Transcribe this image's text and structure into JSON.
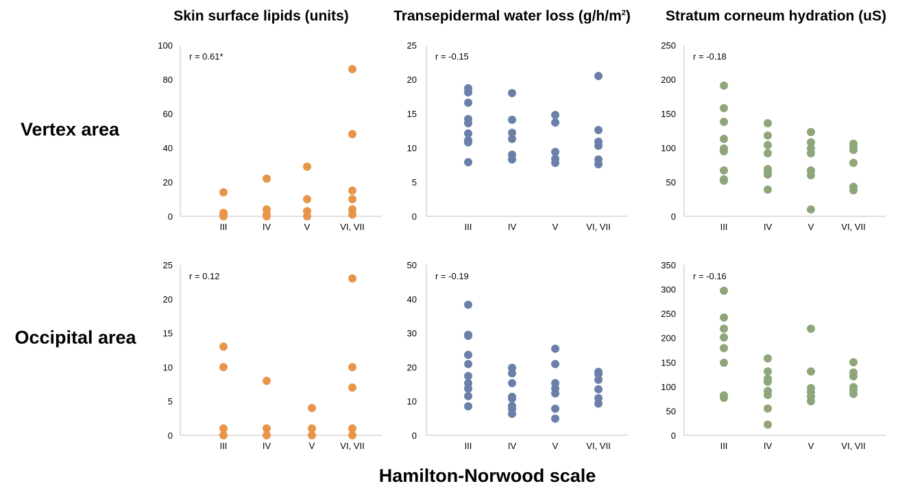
{
  "column_titles": [
    "Skin surface lipids (units)",
    "Transepidermal water loss (g/h/m",
    "Stratum corneum hydration (uS)"
  ],
  "column_title_superscript": "2",
  "column_title_suffix": ")",
  "row_labels": [
    "Vertex area",
    "Occipital area"
  ],
  "x_axis_title": "Hamilton-Norwood scale",
  "colors": {
    "lipids": "#E8954B",
    "tewl": "#6A80A8",
    "hydration": "#8FA67A",
    "axis": "#BFBFBF"
  },
  "chart_data": [
    {
      "type": "scatter",
      "row": "Vertex area",
      "measure": "Skin surface lipids (units)",
      "annotation": "r = 0.61*",
      "categories": [
        "III",
        "IV",
        "V",
        "VI, VII"
      ],
      "ylim": [
        0,
        100
      ],
      "yticks": [
        0,
        20,
        40,
        60,
        80,
        100
      ],
      "color": "#E8954B",
      "points": [
        {
          "x": "III",
          "y": 14
        },
        {
          "x": "III",
          "y": 2
        },
        {
          "x": "III",
          "y": 1
        },
        {
          "x": "III",
          "y": 0
        },
        {
          "x": "IV",
          "y": 22
        },
        {
          "x": "IV",
          "y": 4
        },
        {
          "x": "IV",
          "y": 1
        },
        {
          "x": "IV",
          "y": 0
        },
        {
          "x": "V",
          "y": 29
        },
        {
          "x": "V",
          "y": 10
        },
        {
          "x": "V",
          "y": 3
        },
        {
          "x": "V",
          "y": 0
        },
        {
          "x": "VI, VII",
          "y": 86
        },
        {
          "x": "VI, VII",
          "y": 48
        },
        {
          "x": "VI, VII",
          "y": 15
        },
        {
          "x": "VI, VII",
          "y": 10
        },
        {
          "x": "VI, VII",
          "y": 4
        },
        {
          "x": "VI, VII",
          "y": 1
        }
      ]
    },
    {
      "type": "scatter",
      "row": "Vertex area",
      "measure": "Transepidermal water loss (g/h/m2)",
      "annotation": "r = -0.15",
      "categories": [
        "III",
        "IV",
        "V",
        "VI, VII"
      ],
      "ylim": [
        0,
        25
      ],
      "yticks": [
        0,
        5,
        10,
        15,
        20,
        25
      ],
      "color": "#6A80A8",
      "points": [
        {
          "x": "III",
          "y": 18.7
        },
        {
          "x": "III",
          "y": 18.1
        },
        {
          "x": "III",
          "y": 16.6
        },
        {
          "x": "III",
          "y": 14.2
        },
        {
          "x": "III",
          "y": 13.6
        },
        {
          "x": "III",
          "y": 12.1
        },
        {
          "x": "III",
          "y": 11.1
        },
        {
          "x": "III",
          "y": 10.8
        },
        {
          "x": "III",
          "y": 7.9
        },
        {
          "x": "IV",
          "y": 18.0
        },
        {
          "x": "IV",
          "y": 14.1
        },
        {
          "x": "IV",
          "y": 12.2
        },
        {
          "x": "IV",
          "y": 11.3
        },
        {
          "x": "IV",
          "y": 9.0
        },
        {
          "x": "IV",
          "y": 8.3
        },
        {
          "x": "V",
          "y": 14.8
        },
        {
          "x": "V",
          "y": 13.7
        },
        {
          "x": "V",
          "y": 9.4
        },
        {
          "x": "V",
          "y": 8.4
        },
        {
          "x": "V",
          "y": 7.8
        },
        {
          "x": "VI, VII",
          "y": 20.5
        },
        {
          "x": "VI, VII",
          "y": 12.6
        },
        {
          "x": "VI, VII",
          "y": 10.9
        },
        {
          "x": "VI, VII",
          "y": 10.3
        },
        {
          "x": "VI, VII",
          "y": 8.3
        },
        {
          "x": "VI, VII",
          "y": 7.6
        }
      ]
    },
    {
      "type": "scatter",
      "row": "Vertex area",
      "measure": "Stratum corneum hydration (uS)",
      "annotation": "r = -0.18",
      "categories": [
        "III",
        "IV",
        "V",
        "VI, VII"
      ],
      "ylim": [
        0,
        250
      ],
      "yticks": [
        0,
        50,
        100,
        150,
        200,
        250
      ],
      "color": "#8FA67A",
      "points": [
        {
          "x": "III",
          "y": 191
        },
        {
          "x": "III",
          "y": 158
        },
        {
          "x": "III",
          "y": 138
        },
        {
          "x": "III",
          "y": 113
        },
        {
          "x": "III",
          "y": 99
        },
        {
          "x": "III",
          "y": 95
        },
        {
          "x": "III",
          "y": 67
        },
        {
          "x": "III",
          "y": 54
        },
        {
          "x": "III",
          "y": 52
        },
        {
          "x": "IV",
          "y": 136
        },
        {
          "x": "IV",
          "y": 118
        },
        {
          "x": "IV",
          "y": 104
        },
        {
          "x": "IV",
          "y": 92
        },
        {
          "x": "IV",
          "y": 69
        },
        {
          "x": "IV",
          "y": 66
        },
        {
          "x": "IV",
          "y": 61
        },
        {
          "x": "IV",
          "y": 39
        },
        {
          "x": "V",
          "y": 123
        },
        {
          "x": "V",
          "y": 108
        },
        {
          "x": "V",
          "y": 99
        },
        {
          "x": "V",
          "y": 92
        },
        {
          "x": "V",
          "y": 67
        },
        {
          "x": "V",
          "y": 60
        },
        {
          "x": "V",
          "y": 10
        },
        {
          "x": "VI, VII",
          "y": 106
        },
        {
          "x": "VI, VII",
          "y": 102
        },
        {
          "x": "VI, VII",
          "y": 97
        },
        {
          "x": "VI, VII",
          "y": 78
        },
        {
          "x": "VI, VII",
          "y": 43
        },
        {
          "x": "VI, VII",
          "y": 38
        }
      ]
    },
    {
      "type": "scatter",
      "row": "Occipital area",
      "measure": "Skin surface lipids (units)",
      "annotation": "r = 0.12",
      "categories": [
        "III",
        "IV",
        "V",
        "VI, VII"
      ],
      "ylim": [
        0,
        25
      ],
      "yticks": [
        0,
        5,
        10,
        15,
        20,
        25
      ],
      "color": "#E8954B",
      "points": [
        {
          "x": "III",
          "y": 13
        },
        {
          "x": "III",
          "y": 10
        },
        {
          "x": "III",
          "y": 1
        },
        {
          "x": "III",
          "y": 0
        },
        {
          "x": "IV",
          "y": 8
        },
        {
          "x": "IV",
          "y": 1
        },
        {
          "x": "IV",
          "y": 0
        },
        {
          "x": "V",
          "y": 4
        },
        {
          "x": "V",
          "y": 1
        },
        {
          "x": "V",
          "y": 0
        },
        {
          "x": "VI, VII",
          "y": 23
        },
        {
          "x": "VI, VII",
          "y": 10
        },
        {
          "x": "VI, VII",
          "y": 7
        },
        {
          "x": "VI, VII",
          "y": 1
        },
        {
          "x": "VI, VII",
          "y": 0
        }
      ]
    },
    {
      "type": "scatter",
      "row": "Occipital area",
      "measure": "Transepidermal water loss (g/h/m2)",
      "annotation": "r = -0.19",
      "categories": [
        "III",
        "IV",
        "V",
        "VI, VII"
      ],
      "ylim": [
        0,
        50
      ],
      "yticks": [
        0,
        10,
        20,
        30,
        40,
        50
      ],
      "color": "#6A80A8",
      "points": [
        {
          "x": "III",
          "y": 38.3
        },
        {
          "x": "III",
          "y": 29.5
        },
        {
          "x": "III",
          "y": 29.2
        },
        {
          "x": "III",
          "y": 23.6
        },
        {
          "x": "III",
          "y": 20.9
        },
        {
          "x": "III",
          "y": 17.4
        },
        {
          "x": "III",
          "y": 15.3
        },
        {
          "x": "III",
          "y": 13.7
        },
        {
          "x": "III",
          "y": 11.5
        },
        {
          "x": "III",
          "y": 8.5
        },
        {
          "x": "IV",
          "y": 19.8
        },
        {
          "x": "IV",
          "y": 18.2
        },
        {
          "x": "IV",
          "y": 15.3
        },
        {
          "x": "IV",
          "y": 11.3
        },
        {
          "x": "IV",
          "y": 10.8
        },
        {
          "x": "IV",
          "y": 8.6
        },
        {
          "x": "IV",
          "y": 7.7
        },
        {
          "x": "IV",
          "y": 6.3
        },
        {
          "x": "V",
          "y": 25.4
        },
        {
          "x": "V",
          "y": 20.9
        },
        {
          "x": "V",
          "y": 15.3
        },
        {
          "x": "V",
          "y": 13.7
        },
        {
          "x": "V",
          "y": 12.3
        },
        {
          "x": "V",
          "y": 7.8
        },
        {
          "x": "V",
          "y": 4.9
        },
        {
          "x": "VI, VII",
          "y": 18.6
        },
        {
          "x": "VI, VII",
          "y": 18.0
        },
        {
          "x": "VI, VII",
          "y": 16.3
        },
        {
          "x": "VI, VII",
          "y": 13.5
        },
        {
          "x": "VI, VII",
          "y": 10.9
        },
        {
          "x": "VI, VII",
          "y": 9.3
        }
      ]
    },
    {
      "type": "scatter",
      "row": "Occipital area",
      "measure": "Stratum corneum hydration (uS)",
      "annotation": "r = -0.16",
      "categories": [
        "III",
        "IV",
        "V",
        "VI, VII"
      ],
      "ylim": [
        0,
        350
      ],
      "yticks": [
        0,
        50,
        100,
        150,
        200,
        250,
        300,
        350
      ],
      "color": "#8FA67A",
      "points": [
        {
          "x": "III",
          "y": 297
        },
        {
          "x": "III",
          "y": 242
        },
        {
          "x": "III",
          "y": 219
        },
        {
          "x": "III",
          "y": 201
        },
        {
          "x": "III",
          "y": 179
        },
        {
          "x": "III",
          "y": 149
        },
        {
          "x": "III",
          "y": 82
        },
        {
          "x": "III",
          "y": 77
        },
        {
          "x": "IV",
          "y": 158
        },
        {
          "x": "IV",
          "y": 131
        },
        {
          "x": "IV",
          "y": 116
        },
        {
          "x": "IV",
          "y": 110
        },
        {
          "x": "IV",
          "y": 91
        },
        {
          "x": "IV",
          "y": 83
        },
        {
          "x": "IV",
          "y": 55
        },
        {
          "x": "IV",
          "y": 22
        },
        {
          "x": "V",
          "y": 219
        },
        {
          "x": "V",
          "y": 131
        },
        {
          "x": "V",
          "y": 97
        },
        {
          "x": "V",
          "y": 89
        },
        {
          "x": "V",
          "y": 80
        },
        {
          "x": "V",
          "y": 70
        },
        {
          "x": "VI, VII",
          "y": 150
        },
        {
          "x": "VI, VII",
          "y": 129
        },
        {
          "x": "VI, VII",
          "y": 121
        },
        {
          "x": "VI, VII",
          "y": 99
        },
        {
          "x": "VI, VII",
          "y": 93
        },
        {
          "x": "VI, VII",
          "y": 85
        }
      ]
    }
  ]
}
